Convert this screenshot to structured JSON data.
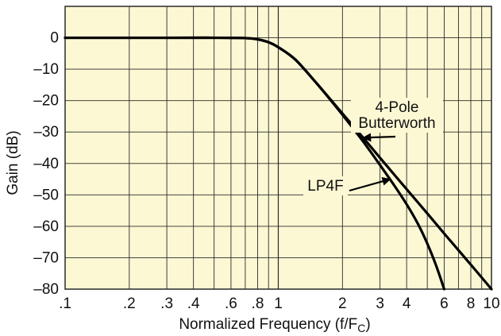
{
  "colors": {
    "plot_background": "#fdf8d4",
    "grid": "#2a2a2a",
    "curve": "#000000",
    "text": "#111111"
  },
  "chart_data": {
    "type": "line",
    "title": "",
    "xlabel": "Normalized Frequency (f/F",
    "xlabel_subscript": "C",
    "xlabel_suffix": ")",
    "ylabel": "Gain (dB)",
    "xscale": "log",
    "xlim": [
      0.1,
      10
    ],
    "ylim": [
      -80,
      10
    ],
    "grid": true,
    "x_tick_labels": [
      {
        "value": 0.1,
        "label": ".1"
      },
      {
        "value": 0.2,
        "label": ".2"
      },
      {
        "value": 0.3,
        "label": ".3"
      },
      {
        "value": 0.4,
        "label": ".4"
      },
      {
        "value": 0.6,
        "label": ".6"
      },
      {
        "value": 0.8,
        "label": ".8"
      },
      {
        "value": 1,
        "label": "1"
      },
      {
        "value": 2,
        "label": "2"
      },
      {
        "value": 3,
        "label": "3"
      },
      {
        "value": 4,
        "label": "4"
      },
      {
        "value": 6,
        "label": "6"
      },
      {
        "value": 8,
        "label": "8"
      },
      {
        "value": 10,
        "label": "10"
      }
    ],
    "y_tick_labels": [
      {
        "value": 0,
        "label": "0"
      },
      {
        "value": -10,
        "label": "–10"
      },
      {
        "value": -20,
        "label": "–20"
      },
      {
        "value": -30,
        "label": "–30"
      },
      {
        "value": -40,
        "label": "–40"
      },
      {
        "value": -50,
        "label": "–50"
      },
      {
        "value": -60,
        "label": "–60"
      },
      {
        "value": -70,
        "label": "–70"
      },
      {
        "value": -80,
        "label": "–80"
      }
    ],
    "series": [
      {
        "name": "4-Pole Butterworth",
        "x": [
          0.1,
          0.3,
          0.5,
          0.7,
          0.8,
          0.9,
          1.0,
          1.2,
          1.5,
          2,
          2.5,
          3,
          4,
          5,
          6,
          8,
          10
        ],
        "y": [
          0,
          0,
          0,
          -0.1,
          -0.5,
          -1.4,
          -3,
          -6.9,
          -14.2,
          -24.1,
          -31.8,
          -38.2,
          -48.2,
          -55.9,
          -62.3,
          -72.2,
          -80
        ]
      },
      {
        "name": "LP4F",
        "x": [
          0.1,
          0.3,
          0.5,
          0.7,
          0.8,
          0.9,
          1.0,
          1.2,
          1.5,
          2,
          2.5,
          3,
          3.5,
          4,
          4.5,
          5,
          5.5,
          6
        ],
        "y": [
          0,
          0,
          0,
          -0.1,
          -0.5,
          -1.4,
          -3,
          -6.9,
          -14.2,
          -24.5,
          -33,
          -40.5,
          -47,
          -53,
          -59,
          -65.5,
          -72.5,
          -80
        ]
      }
    ],
    "annotations": [
      {
        "lines": [
          "4-Pole",
          "Butterworth"
        ],
        "points_to": "4-Pole Butterworth",
        "arrow_to": {
          "x": 2.5,
          "y": -31.8
        }
      },
      {
        "lines": [
          "LP4F"
        ],
        "points_to": "LP4F",
        "arrow_to": {
          "x": 3.35,
          "y": -45
        }
      }
    ]
  }
}
